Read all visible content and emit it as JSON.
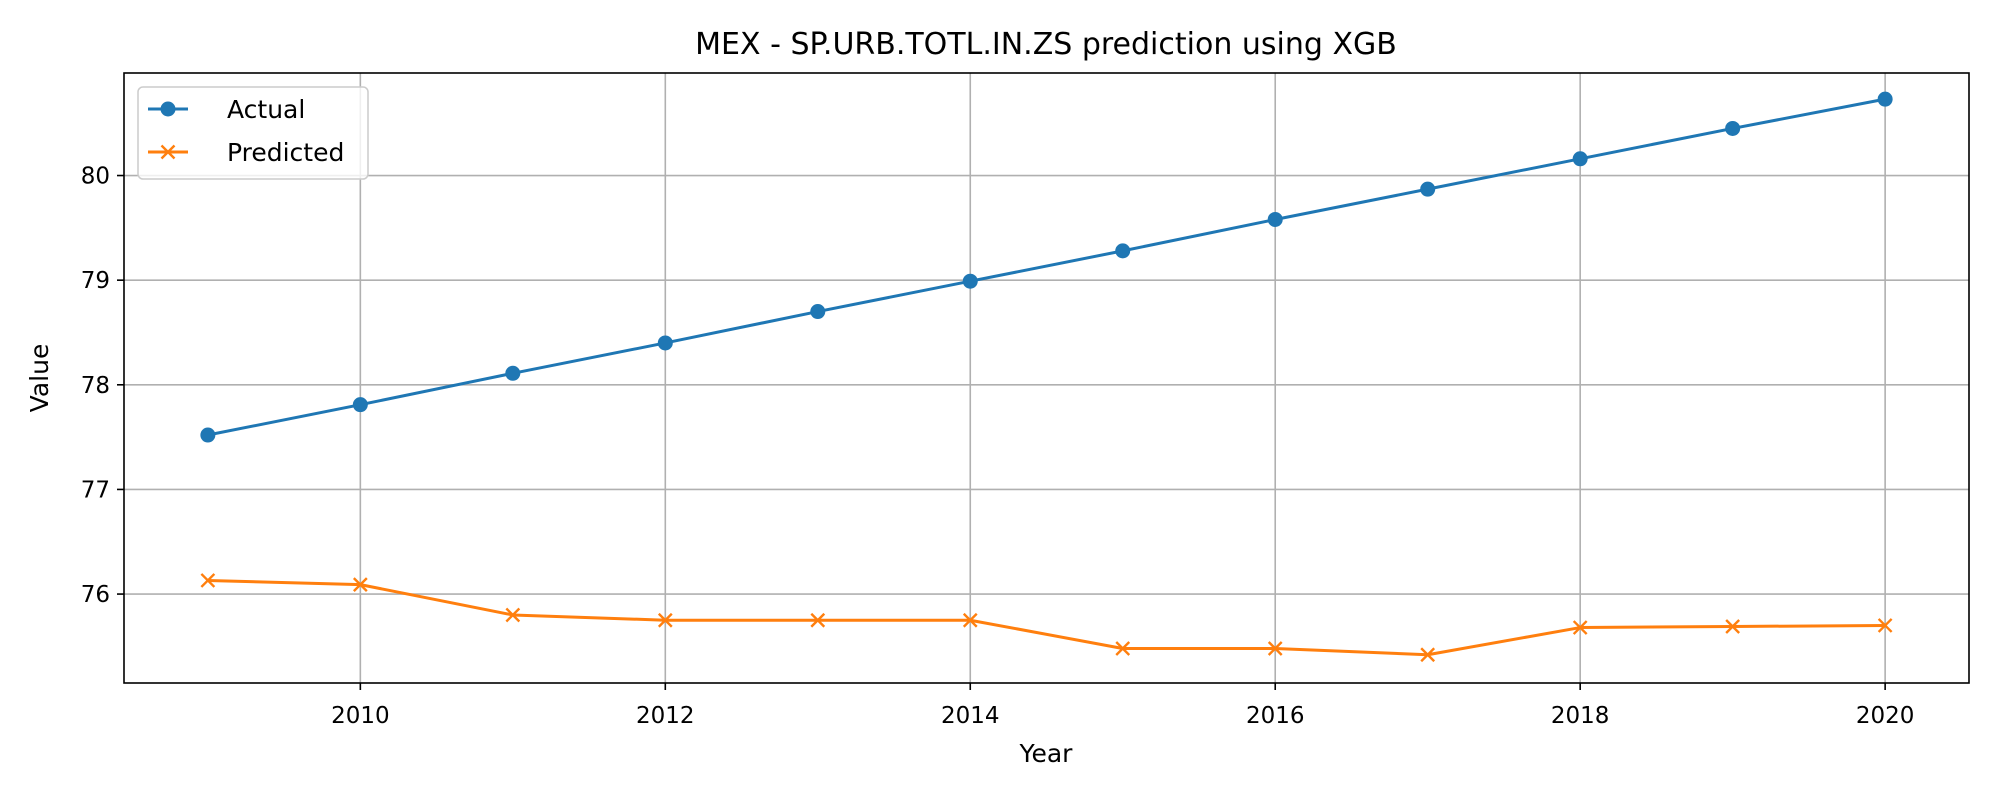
{
  "chart_data": {
    "type": "line",
    "title": "MEX - SP.URB.TOTL.IN.ZS prediction using XGB",
    "xlabel": "Year",
    "ylabel": "Value",
    "x": [
      2009,
      2010,
      2011,
      2012,
      2013,
      2014,
      2015,
      2016,
      2017,
      2018,
      2019,
      2020
    ],
    "xlim": [
      2008.45,
      2020.55
    ],
    "ylim": [
      75.15,
      80.98
    ],
    "xticks": [
      2010,
      2012,
      2014,
      2016,
      2018,
      2020
    ],
    "yticks": [
      76,
      77,
      78,
      79,
      80
    ],
    "grid": true,
    "legend_position": "upper-left",
    "series": [
      {
        "name": "Actual",
        "marker": "circle",
        "color": "#1f77b4",
        "values": [
          77.52,
          77.81,
          78.11,
          78.4,
          78.7,
          78.99,
          79.28,
          79.58,
          79.87,
          80.16,
          80.45,
          80.73
        ]
      },
      {
        "name": "Predicted",
        "marker": "x",
        "color": "#ff7f0e",
        "values": [
          76.13,
          76.09,
          75.8,
          75.75,
          75.75,
          75.75,
          75.48,
          75.48,
          75.42,
          75.68,
          75.69,
          75.7
        ]
      }
    ]
  }
}
